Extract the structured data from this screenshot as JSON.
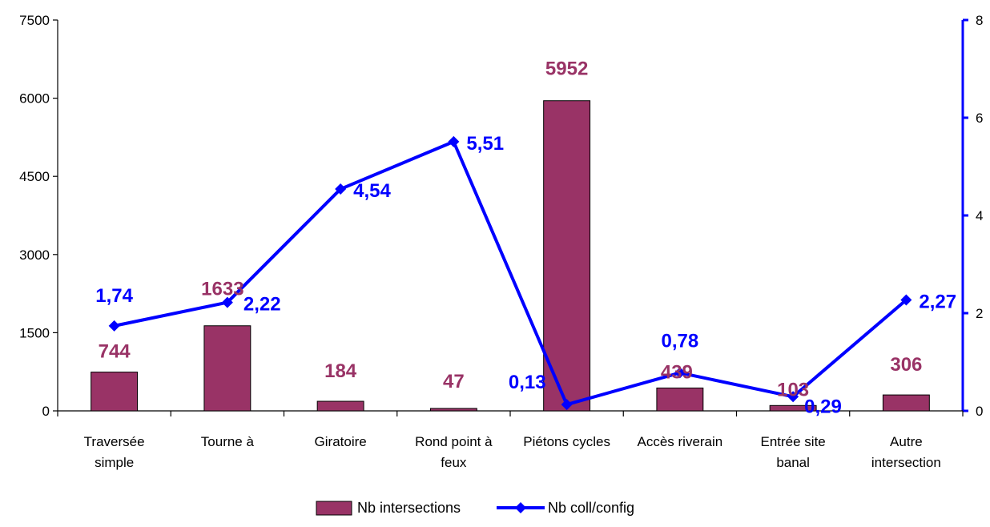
{
  "chart_data": {
    "type": "bar",
    "categories": [
      [
        "Traversée",
        "simple"
      ],
      [
        "Tourne à"
      ],
      [
        "Giratoire"
      ],
      [
        "Rond point à",
        "feux"
      ],
      [
        "Piétons cycles"
      ],
      [
        "Accès riverain"
      ],
      [
        "Entrée site",
        "banal"
      ],
      [
        "Autre",
        "intersection"
      ]
    ],
    "series": [
      {
        "name": "Nb intersections",
        "type": "bar",
        "axis": "left",
        "color": "#993366",
        "values": [
          744,
          1633,
          184,
          47,
          5952,
          439,
          103,
          306
        ],
        "labels": [
          "744",
          "1633",
          "184",
          "47",
          "5952",
          "439",
          "103",
          "306"
        ]
      },
      {
        "name": "Nb coll/config",
        "type": "line",
        "axis": "right",
        "color": "#0000FF",
        "marker": "diamond",
        "values": [
          1.74,
          2.22,
          4.54,
          5.51,
          0.13,
          0.78,
          0.29,
          2.27
        ],
        "labels": [
          "1,74",
          "2,22",
          "4,54",
          "5,51",
          "0,13",
          "0,78",
          "0,29",
          "2,27"
        ]
      }
    ],
    "y_left": {
      "min": 0,
      "max": 7500,
      "ticks": [
        0,
        1500,
        3000,
        4500,
        6000,
        7500
      ]
    },
    "y_right": {
      "min": 0,
      "max": 8,
      "ticks": [
        0,
        2,
        4,
        6,
        8
      ],
      "color": "#0000FF"
    },
    "grid": false,
    "legend": {
      "position": "bottom"
    }
  }
}
